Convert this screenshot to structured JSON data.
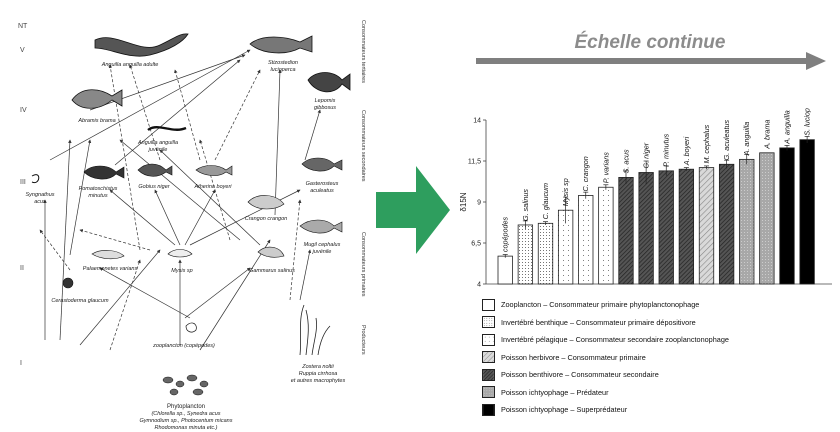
{
  "food_web": {
    "levels": [
      "NT",
      "V",
      "IV",
      "III",
      "II",
      "I"
    ],
    "side_labels": [
      "Consommateurs tertiaires",
      "Consommateurs secondaires",
      "Consommateurs primaires",
      "Producteurs"
    ],
    "species": {
      "anguilla_adult": "Anguilla anguilla adulte",
      "stizostedion": [
        "Stizostedion",
        "lucioperca"
      ],
      "abramis": "Abramis brama",
      "anguilla_juv": [
        "Anguilla anguilla",
        "juvénile"
      ],
      "lepomis": [
        "Lepomis",
        "gibbosus"
      ],
      "syngnathus": [
        "Syngnathus",
        "acus"
      ],
      "pomatoschistus": [
        "Pomatoschistus",
        "minutus"
      ],
      "gobius": "Gobius niger",
      "atherina": "Atherina boyeri",
      "gasterosteus": [
        "Gasterosteus",
        "aculeatus"
      ],
      "crangon": "Crangon crangon",
      "mugil": [
        "Mugil cephalus",
        "juvénile"
      ],
      "palaemonetes": "Palaemonetes varians",
      "mysis": "Mysis sp",
      "gammarus": "Gammarus salinus",
      "cerastoderma": "Cerastoderma glaucum",
      "zooplancton": "zooplancton (copépodes)",
      "zostera": [
        "Zostera noltii",
        "Ruppia cirrhosa",
        "et autres macrophytes"
      ],
      "phyto": [
        "Phytoplancton",
        "(Chlorella sp., Synedra acus",
        "Gymnodium sp., Photocentum micans",
        "Rhodomonas minuta etc.)"
      ]
    }
  },
  "scale": {
    "title": "Échelle continue",
    "arrow_color": "#7f7f7f",
    "big_arrow_color": "#2e9e5e"
  },
  "chart_data": {
    "type": "bar",
    "ylabel": "δ15N",
    "ylim": [
      4,
      14
    ],
    "yticks": [
      "4",
      "6,5",
      "9",
      "11,5",
      "14"
    ],
    "ytick_values": [
      4,
      6.5,
      9,
      11.5,
      14
    ],
    "categories": [
      "copépodes",
      "G. salinus",
      "C. glaucum",
      "Mysis sp",
      "C. crangon",
      "P. varians",
      "S. acus",
      "G. niger",
      "P. minutus",
      "A. boyeri",
      "M. cephalus",
      "G. aculeatus",
      "A. anguilla",
      "A. brama",
      "A. anguilla",
      "S. lucioperca"
    ],
    "values": [
      5.7,
      7.6,
      7.7,
      8.5,
      9.4,
      9.9,
      10.5,
      10.8,
      10.9,
      11.0,
      11.1,
      11.3,
      11.6,
      12.0,
      12.3,
      12.8
    ],
    "errors": [
      0.1,
      0.25,
      0.1,
      0.8,
      0.2,
      0.15,
      0.4,
      0.7,
      0.3,
      0.1,
      0.1,
      0.25,
      0.3,
      0,
      0.15,
      0.2
    ],
    "groups": [
      0,
      1,
      1,
      2,
      2,
      2,
      4,
      4,
      4,
      4,
      3,
      4,
      5,
      5,
      6,
      6
    ],
    "legend": [
      {
        "label": "Zooplancton – Consommateur primaire phytoplanctonophage",
        "pattern": "white"
      },
      {
        "label": "Invertébré benthique – Consommateur primaire dépositivore",
        "pattern": "dots"
      },
      {
        "label": "Invertébré pélagique – Consommateur secondaire zooplanctonophage",
        "pattern": "sparse-dots"
      },
      {
        "label": "Poisson herbivore – Consommateur primaire",
        "pattern": "hatch"
      },
      {
        "label": "Poisson benthivore – Consommateur secondaire",
        "pattern": "dark-hatch"
      },
      {
        "label": "Poisson ichtyophage – Prédateur",
        "pattern": "gray-dots"
      },
      {
        "label": "Poisson ichtyophage – Superprédateur",
        "pattern": "black"
      }
    ]
  }
}
